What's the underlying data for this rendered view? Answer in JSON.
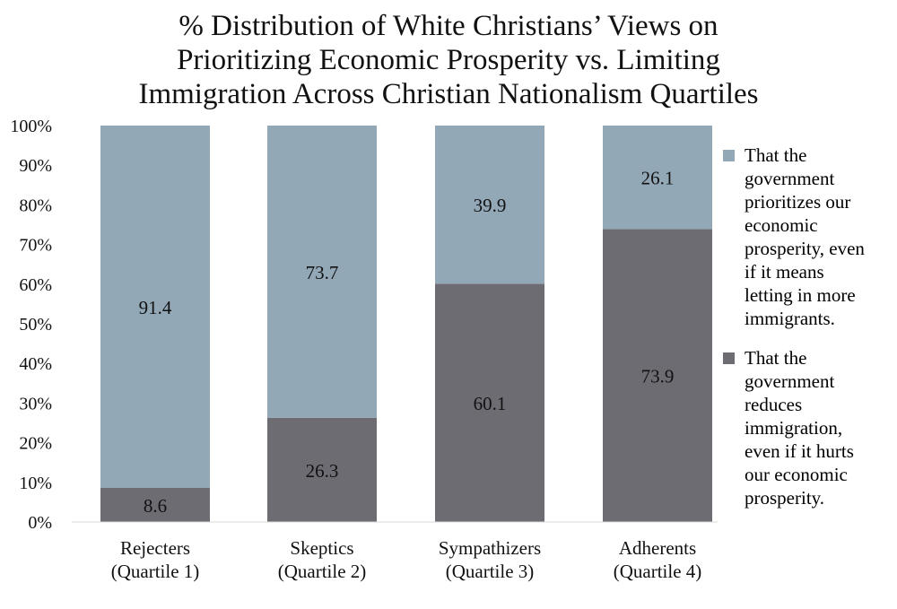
{
  "chart_data": {
    "type": "bar",
    "stacked": true,
    "title_lines": [
      "% Distribution of White Christians’ Views on",
      "Prioritizing Economic Prosperity vs. Limiting",
      "Immigration Across Christian Nationalism Quartiles"
    ],
    "categories": [
      [
        "Rejecters",
        "(Quartile 1)"
      ],
      [
        "Skeptics",
        "(Quartile 2)"
      ],
      [
        "Sympathizers",
        "(Quartile 3)"
      ],
      [
        "Adherents",
        "(Quartile 4)"
      ]
    ],
    "series": [
      {
        "name": "That the government reduces immigration, even if it hurts our economic prosperity.",
        "legend_lines": [
          "That the",
          "government",
          "reduces",
          "immigration,",
          "even if it hurts",
          "our economic",
          "prosperity."
        ],
        "color": "#6d6c72",
        "values": [
          8.6,
          26.3,
          60.1,
          73.9
        ],
        "labels": [
          "8.6",
          "26.3",
          "60.1",
          "73.9"
        ]
      },
      {
        "name": "That the government prioritizes our economic prosperity, even if it means letting in more immigrants.",
        "legend_lines": [
          "That the",
          "government",
          "prioritizes our",
          "economic",
          "prosperity, even",
          "if it means",
          "letting in more",
          "immigrants."
        ],
        "color": "#93a8b7",
        "values": [
          91.4,
          73.7,
          39.9,
          26.1
        ],
        "labels": [
          "91.4",
          "73.7",
          "39.9",
          "26.1"
        ]
      }
    ],
    "y_ticks": [
      "0%",
      "10%",
      "20%",
      "30%",
      "40%",
      "50%",
      "60%",
      "70%",
      "80%",
      "90%",
      "100%"
    ],
    "ylim": [
      0,
      100
    ],
    "legend_position": "right",
    "grid": false
  }
}
